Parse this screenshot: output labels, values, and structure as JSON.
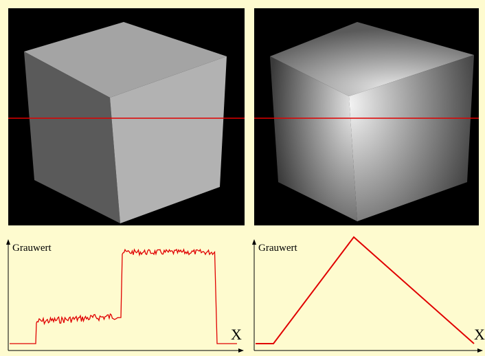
{
  "panels": [
    {
      "y_label": "Grauwert",
      "x_label": "X"
    },
    {
      "y_label": "Grauwert",
      "x_label": "X"
    }
  ]
}
